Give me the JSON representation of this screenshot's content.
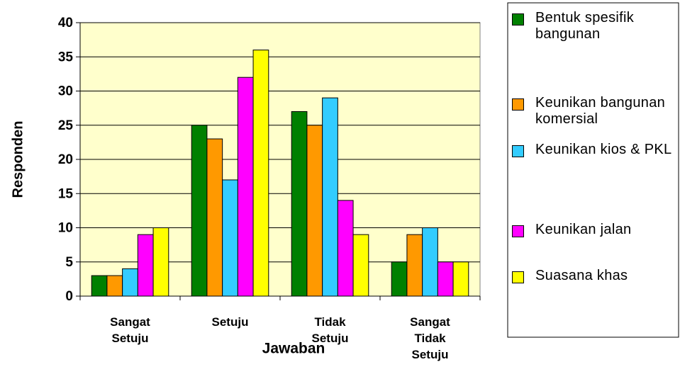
{
  "chart_data": {
    "type": "bar",
    "x_label": "Jawaban",
    "y_label": "Responden",
    "categories": [
      "Sangat Setuju",
      "Setuju",
      "Tidak Setuju",
      "Sangat Tidak Setuju"
    ],
    "series": [
      {
        "name": "Bentuk spesifik bangunan",
        "color": "#008000",
        "values": [
          3,
          25,
          27,
          5
        ]
      },
      {
        "name": "Keunikan bangunan komersial",
        "color": "#FF9900",
        "values": [
          3,
          23,
          25,
          9
        ]
      },
      {
        "name": "Keunikan kios & PKL",
        "color": "#33CCFF",
        "values": [
          4,
          17,
          29,
          10
        ]
      },
      {
        "name": "Keunikan jalan",
        "color": "#FF00FF",
        "values": [
          9,
          32,
          14,
          5
        ]
      },
      {
        "name": "Suasana khas",
        "color": "#FFFF00",
        "values": [
          10,
          36,
          9,
          5
        ]
      }
    ],
    "ylim": [
      0,
      40
    ],
    "yticks": [
      0,
      5,
      10,
      15,
      20,
      25,
      30,
      35,
      40
    ],
    "grid": true,
    "plot_background": "#FFFFCC",
    "legend": "right"
  }
}
